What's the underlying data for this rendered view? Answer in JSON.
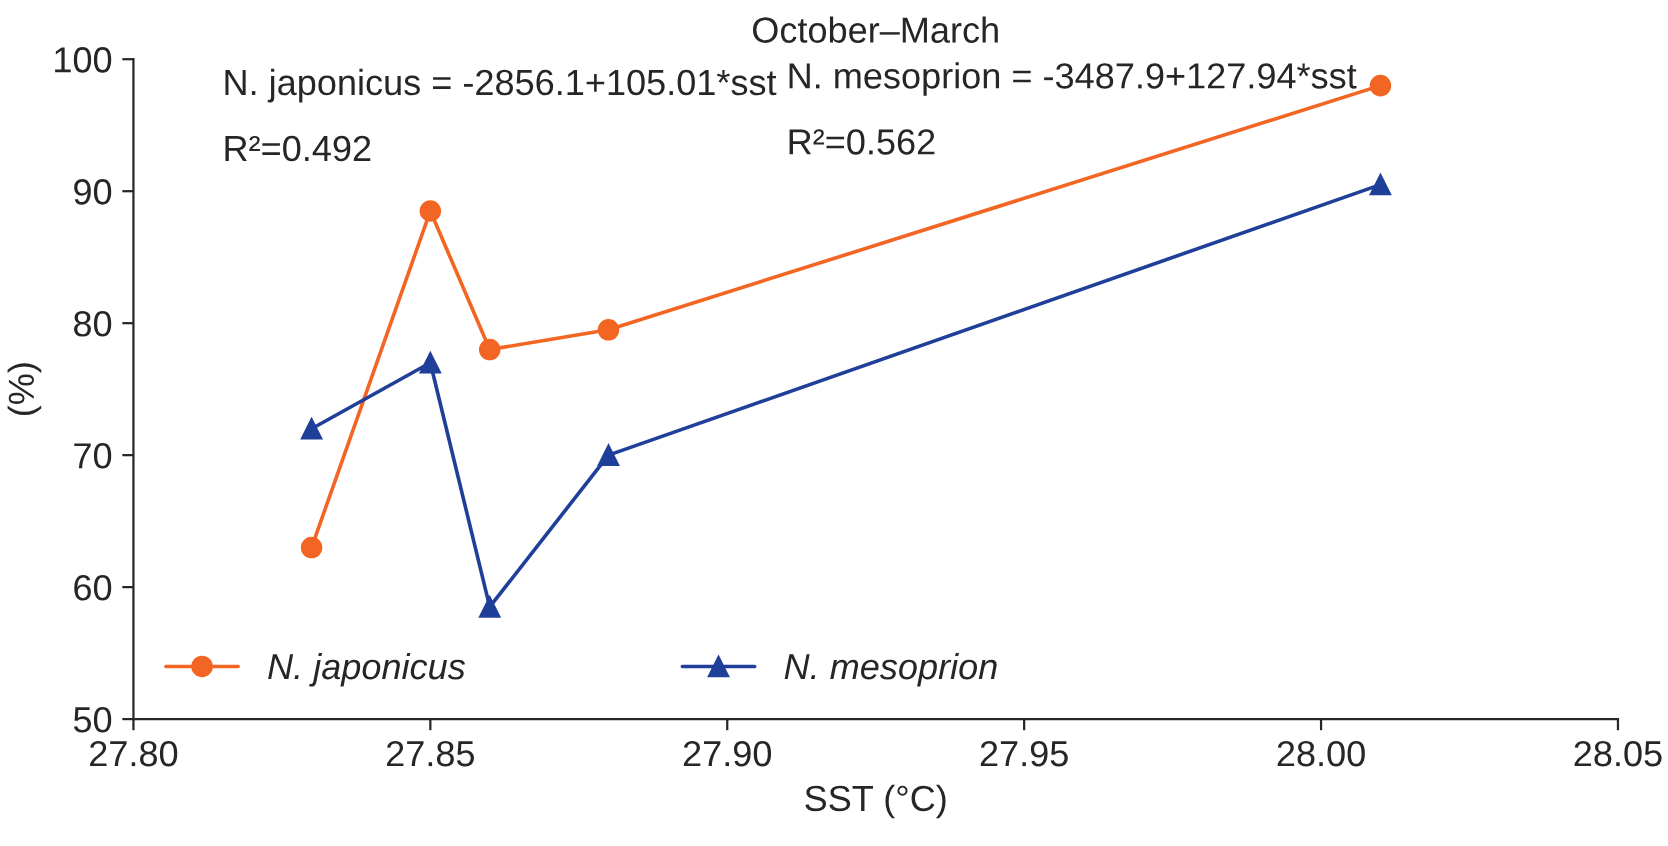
{
  "chart_data": {
    "type": "line",
    "title": "October–March",
    "xlabel": "SST (°C)",
    "ylabel": "(%)",
    "xlim": [
      27.8,
      28.05
    ],
    "xticks": [
      {
        "value": 27.8,
        "label": "27.80"
      },
      {
        "value": 27.85,
        "label": "27.85"
      },
      {
        "value": 27.9,
        "label": "27.90"
      },
      {
        "value": 27.95,
        "label": "27.95"
      },
      {
        "value": 28.0,
        "label": "28.00"
      },
      {
        "value": 28.05,
        "label": "28.05"
      }
    ],
    "ylim": [
      50,
      100
    ],
    "yticks": [
      50,
      60,
      70,
      80,
      90,
      100
    ],
    "grid": false,
    "legend": "bottom left",
    "x": [
      27.83,
      27.85,
      27.86,
      27.88,
      28.01
    ],
    "series": [
      {
        "name": "N. japonicus",
        "color": "#f26522",
        "marker": "circle",
        "values": [
          63,
          88.5,
          78,
          79.5,
          98
        ]
      },
      {
        "name": "N. mesoprion",
        "color": "#1f3f99",
        "marker": "triangle",
        "values": [
          72,
          77,
          58.5,
          70,
          90.5
        ]
      }
    ],
    "annotations": [
      "N. japonicus = -2856.1+105.01*sst",
      "R²=0.492",
      "N. mesoprion = -3487.9+127.94*sst",
      "R²=0.562"
    ]
  }
}
